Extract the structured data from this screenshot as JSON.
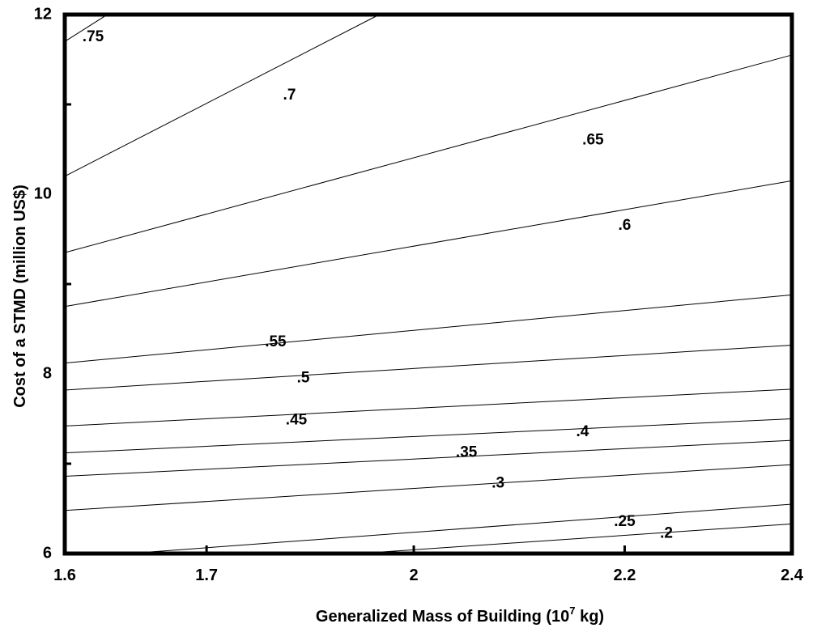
{
  "chart_data": {
    "type": "line",
    "title": "",
    "xlabel": "Generalized Mass of Building (10",
    "xlabel_sup": "7",
    "xlabel_unit": " kg)",
    "ylabel": "Cost of a STMD (million US$)",
    "x_ticks": [
      {
        "value": 1.6,
        "label": "1.6"
      },
      {
        "value": 1.7,
        "label": "1.7"
      },
      {
        "value": 2.0,
        "label": "2"
      },
      {
        "value": 2.2,
        "label": "2.2"
      },
      {
        "value": 2.4,
        "label": "2.4"
      }
    ],
    "x_tick_pos": [
      0.0,
      0.195,
      0.48,
      0.77,
      1.0
    ],
    "y_ticks": [
      {
        "value": 6,
        "label": "6"
      },
      {
        "value": 8,
        "label": "8"
      },
      {
        "value": 10,
        "label": "10"
      },
      {
        "value": 12,
        "label": "12"
      }
    ],
    "ylim": [
      6,
      12
    ],
    "grid": false,
    "series": [
      {
        "name": ".75",
        "x": [
          1.6,
          1.63
        ],
        "y": [
          11.7,
          12.0
        ],
        "label_at": [
          1.62,
          11.75
        ]
      },
      {
        "name": ".7",
        "x": [
          1.6,
          1.95
        ],
        "y": [
          10.2,
          12.0
        ],
        "label_at": [
          1.82,
          11.1
        ]
      },
      {
        "name": ".65",
        "x": [
          1.6,
          2.4
        ],
        "y": [
          9.35,
          11.55
        ],
        "label_at": [
          2.17,
          10.6
        ]
      },
      {
        "name": ".6",
        "x": [
          1.6,
          2.4
        ],
        "y": [
          8.75,
          10.15
        ],
        "label_at": [
          2.2,
          9.65
        ]
      },
      {
        "name": ".55",
        "x": [
          1.6,
          2.4
        ],
        "y": [
          8.12,
          8.88
        ],
        "label_at": [
          1.8,
          8.35
        ]
      },
      {
        "name": ".5",
        "x": [
          1.6,
          2.4
        ],
        "y": [
          7.82,
          8.32
        ],
        "label_at": [
          1.84,
          7.95
        ]
      },
      {
        "name": ".45",
        "x": [
          1.6,
          2.4
        ],
        "y": [
          7.42,
          7.83
        ],
        "label_at": [
          1.83,
          7.48
        ]
      },
      {
        "name": ".4",
        "x": [
          1.6,
          2.4
        ],
        "y": [
          7.12,
          7.5
        ],
        "label_at": [
          2.16,
          7.35
        ]
      },
      {
        "name": ".35",
        "x": [
          1.6,
          2.4
        ],
        "y": [
          6.86,
          7.26
        ],
        "label_at": [
          2.05,
          7.12
        ]
      },
      {
        "name": ".3",
        "x": [
          1.6,
          2.4
        ],
        "y": [
          6.48,
          6.99
        ],
        "label_at": [
          2.08,
          6.78
        ]
      },
      {
        "name": ".25",
        "x": [
          1.645,
          2.4
        ],
        "y": [
          6.0,
          6.55
        ],
        "label_at": [
          2.2,
          6.35
        ]
      },
      {
        "name": ".2",
        "x": [
          1.92,
          2.4
        ],
        "y": [
          6.0,
          6.33
        ],
        "label_at": [
          2.25,
          6.22
        ]
      }
    ]
  }
}
